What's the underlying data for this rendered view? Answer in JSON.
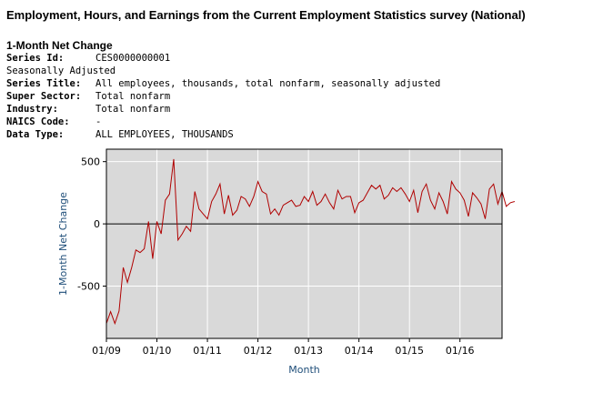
{
  "page_title": "Employment, Hours, and Earnings from the Current Employment Statistics survey (National)",
  "subtitle": "1-Month Net Change",
  "meta": {
    "series_id_label": "Series Id:",
    "series_id": "CES0000000001",
    "seasonal": "Seasonally Adjusted",
    "series_title_label": "Series Title:",
    "series_title": "All employees, thousands, total nonfarm, seasonally adjusted",
    "super_sector_label": "Super Sector:",
    "super_sector": "Total nonfarm",
    "industry_label": "Industry:",
    "industry": "Total nonfarm",
    "naics_label": "NAICS Code:",
    "naics": "-",
    "data_type_label": "Data Type:",
    "data_type": "ALL EMPLOYEES, THOUSANDS"
  },
  "chart_data": {
    "type": "line",
    "xlabel": "Month",
    "ylabel": "1-Month Net Change",
    "x_ticks": [
      "01/09",
      "01/10",
      "01/11",
      "01/12",
      "01/13",
      "01/14",
      "01/15",
      "01/16"
    ],
    "y_ticks": [
      500,
      0,
      -500
    ],
    "ylim": [
      -920,
      600
    ],
    "xlim": [
      "2009-01",
      "2016-11"
    ],
    "grid": true,
    "line_color": "#b00000",
    "background": "#d9d9d9",
    "series": [
      {
        "start": "2009-01",
        "values": [
          -800,
          -705,
          -800,
          -700,
          -350,
          -470,
          -350,
          -210,
          -230,
          -200,
          20,
          -280,
          20,
          -80,
          190,
          240,
          520,
          -130,
          -80,
          -20,
          -60,
          260,
          120,
          80,
          40,
          180,
          240,
          320,
          80,
          230,
          70,
          110,
          220,
          200,
          140,
          220,
          340,
          260,
          240,
          80,
          120,
          70,
          150,
          170,
          190,
          140,
          150,
          220,
          180,
          260,
          150,
          180,
          240,
          170,
          120,
          270,
          200,
          220,
          220,
          90,
          170,
          190,
          250,
          310,
          280,
          310,
          200,
          230,
          290,
          260,
          290,
          240,
          180,
          270,
          90,
          260,
          320,
          190,
          120,
          250,
          180,
          80,
          340,
          280,
          250,
          190,
          60,
          250,
          210,
          160,
          40,
          280,
          320,
          160,
          260,
          140,
          170,
          180
        ]
      }
    ]
  }
}
